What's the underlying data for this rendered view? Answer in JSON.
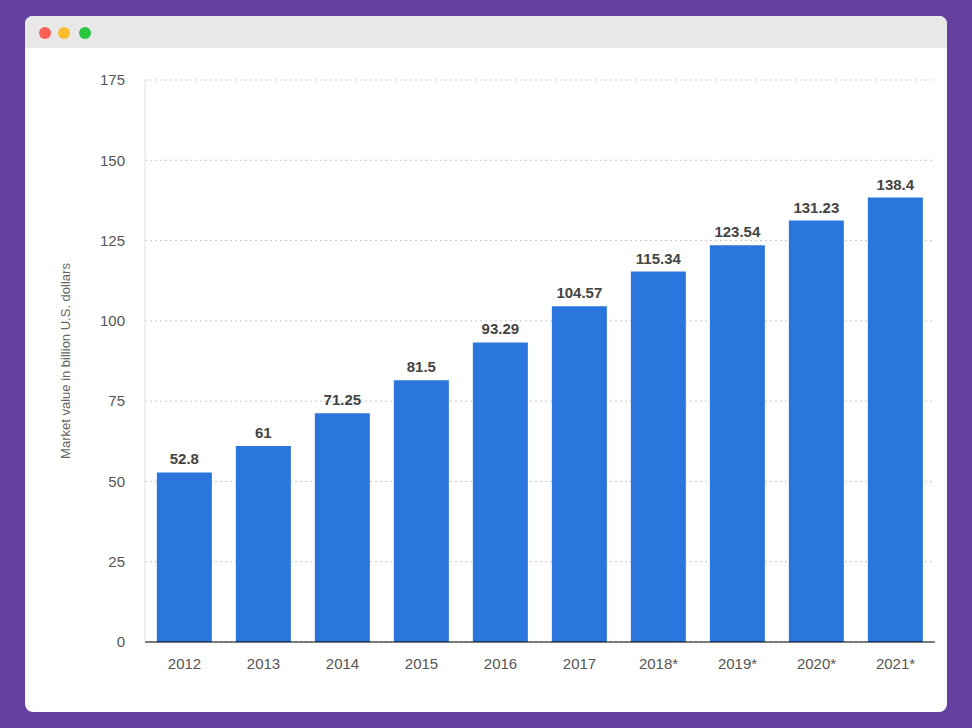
{
  "chart_data": {
    "type": "bar",
    "y_label": "Market value in billion U.S. dollars",
    "categories": [
      "2012",
      "2013",
      "2014",
      "2015",
      "2016",
      "2017",
      "2018*",
      "2019*",
      "2020*",
      "2021*"
    ],
    "values": [
      52.8,
      61,
      71.25,
      81.5,
      93.29,
      104.57,
      115.34,
      123.54,
      131.23,
      138.4
    ],
    "color": "#2a76dd",
    "ylim": [
      0,
      175
    ],
    "yticks": [
      0,
      25,
      50,
      75,
      100,
      125,
      150,
      175
    ],
    "grid": true,
    "data_labels": true
  }
}
